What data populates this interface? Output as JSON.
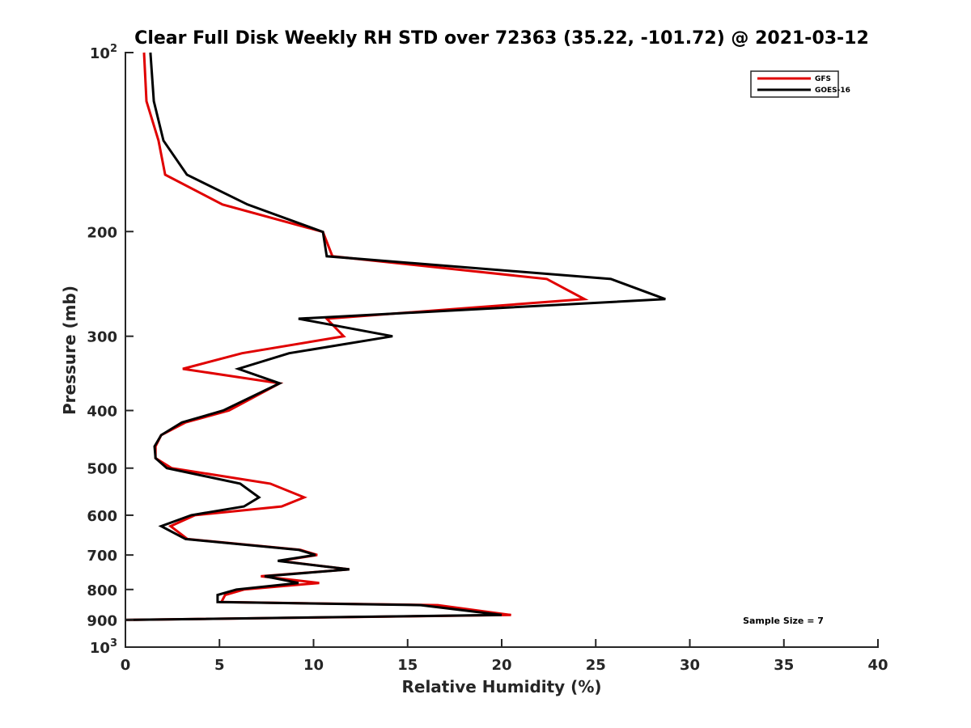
{
  "chart_data": {
    "type": "line",
    "title": "Clear Full Disk Weekly RH STD over 72363 (35.22, -101.72) @ 2021-03-12",
    "xlabel": "Relative Humidity (%)",
    "ylabel": "Pressure (mb)",
    "xlim": [
      0,
      40
    ],
    "ylim": [
      100,
      1000
    ],
    "yscale": "log",
    "yreversed": true,
    "grid": false,
    "x_ticks": [
      0,
      5,
      10,
      15,
      20,
      25,
      30,
      35,
      40
    ],
    "x_tick_labels": [
      "0",
      "5",
      "10",
      "15",
      "20",
      "25",
      "30",
      "35",
      "40"
    ],
    "y_ticks": [
      100,
      200,
      300,
      400,
      500,
      600,
      700,
      800,
      900,
      1000
    ],
    "y_tick_labels": [
      {
        "base": "10",
        "exp": "2"
      },
      {
        "base": "200",
        "exp": ""
      },
      {
        "base": "300",
        "exp": ""
      },
      {
        "base": "400",
        "exp": ""
      },
      {
        "base": "500",
        "exp": ""
      },
      {
        "base": "600",
        "exp": ""
      },
      {
        "base": "700",
        "exp": ""
      },
      {
        "base": "800",
        "exp": ""
      },
      {
        "base": "900",
        "exp": ""
      },
      {
        "base": "10",
        "exp": "3"
      }
    ],
    "legend": {
      "placement": "top-right",
      "entries": [
        "GFS",
        "GOES-16"
      ]
    },
    "annotation": "Sample Size = 7",
    "series": [
      {
        "name": "GFS",
        "color": "#e00000",
        "pressure": [
          100,
          120.7,
          140.6,
          160.5,
          180.1,
          200.3,
          220.1,
          240.3,
          259.8,
          280.3,
          300,
          320.4,
          340.4,
          360,
          400,
          418.8,
          440,
          459.5,
          481,
          500,
          531,
          560,
          580,
          600,
          626,
          658,
          686,
          700,
          716,
          740,
          760,
          780,
          800,
          817,
          840,
          850,
          883,
          900
        ],
        "values": [
          0.99,
          1.12,
          1.76,
          2.11,
          5.16,
          10.5,
          11.0,
          22.4,
          24.4,
          10.7,
          11.6,
          6.2,
          3.05,
          8.2,
          5.5,
          3.2,
          1.9,
          1.6,
          1.6,
          2.45,
          7.7,
          9.5,
          8.3,
          3.7,
          2.4,
          3.3,
          9.3,
          10.2,
          8.2,
          11.9,
          7.2,
          10.3,
          6.3,
          5.3,
          5.1,
          16.6,
          20.5,
          0
        ]
      },
      {
        "name": "GOES-16",
        "color": "#000000",
        "pressure": [
          100,
          120.7,
          140.6,
          160.5,
          180.1,
          200.3,
          220.1,
          240.3,
          259.8,
          280.3,
          300,
          320.4,
          340.4,
          360,
          400,
          418.8,
          440,
          459.5,
          481,
          500,
          531,
          560,
          580,
          600,
          626,
          658,
          686,
          700,
          716,
          740,
          760,
          780,
          800,
          817,
          840,
          850,
          883,
          900
        ],
        "values": [
          1.33,
          1.51,
          2.02,
          3.27,
          6.49,
          10.5,
          10.7,
          25.8,
          28.7,
          9.2,
          14.2,
          8.7,
          6.0,
          8.2,
          5.2,
          3.0,
          1.9,
          1.55,
          1.6,
          2.2,
          6.1,
          7.1,
          6.3,
          3.5,
          1.9,
          3.2,
          9.2,
          10.1,
          8.1,
          11.9,
          7.4,
          9.2,
          5.9,
          4.9,
          4.9,
          15.7,
          20.0,
          0
        ]
      }
    ]
  }
}
